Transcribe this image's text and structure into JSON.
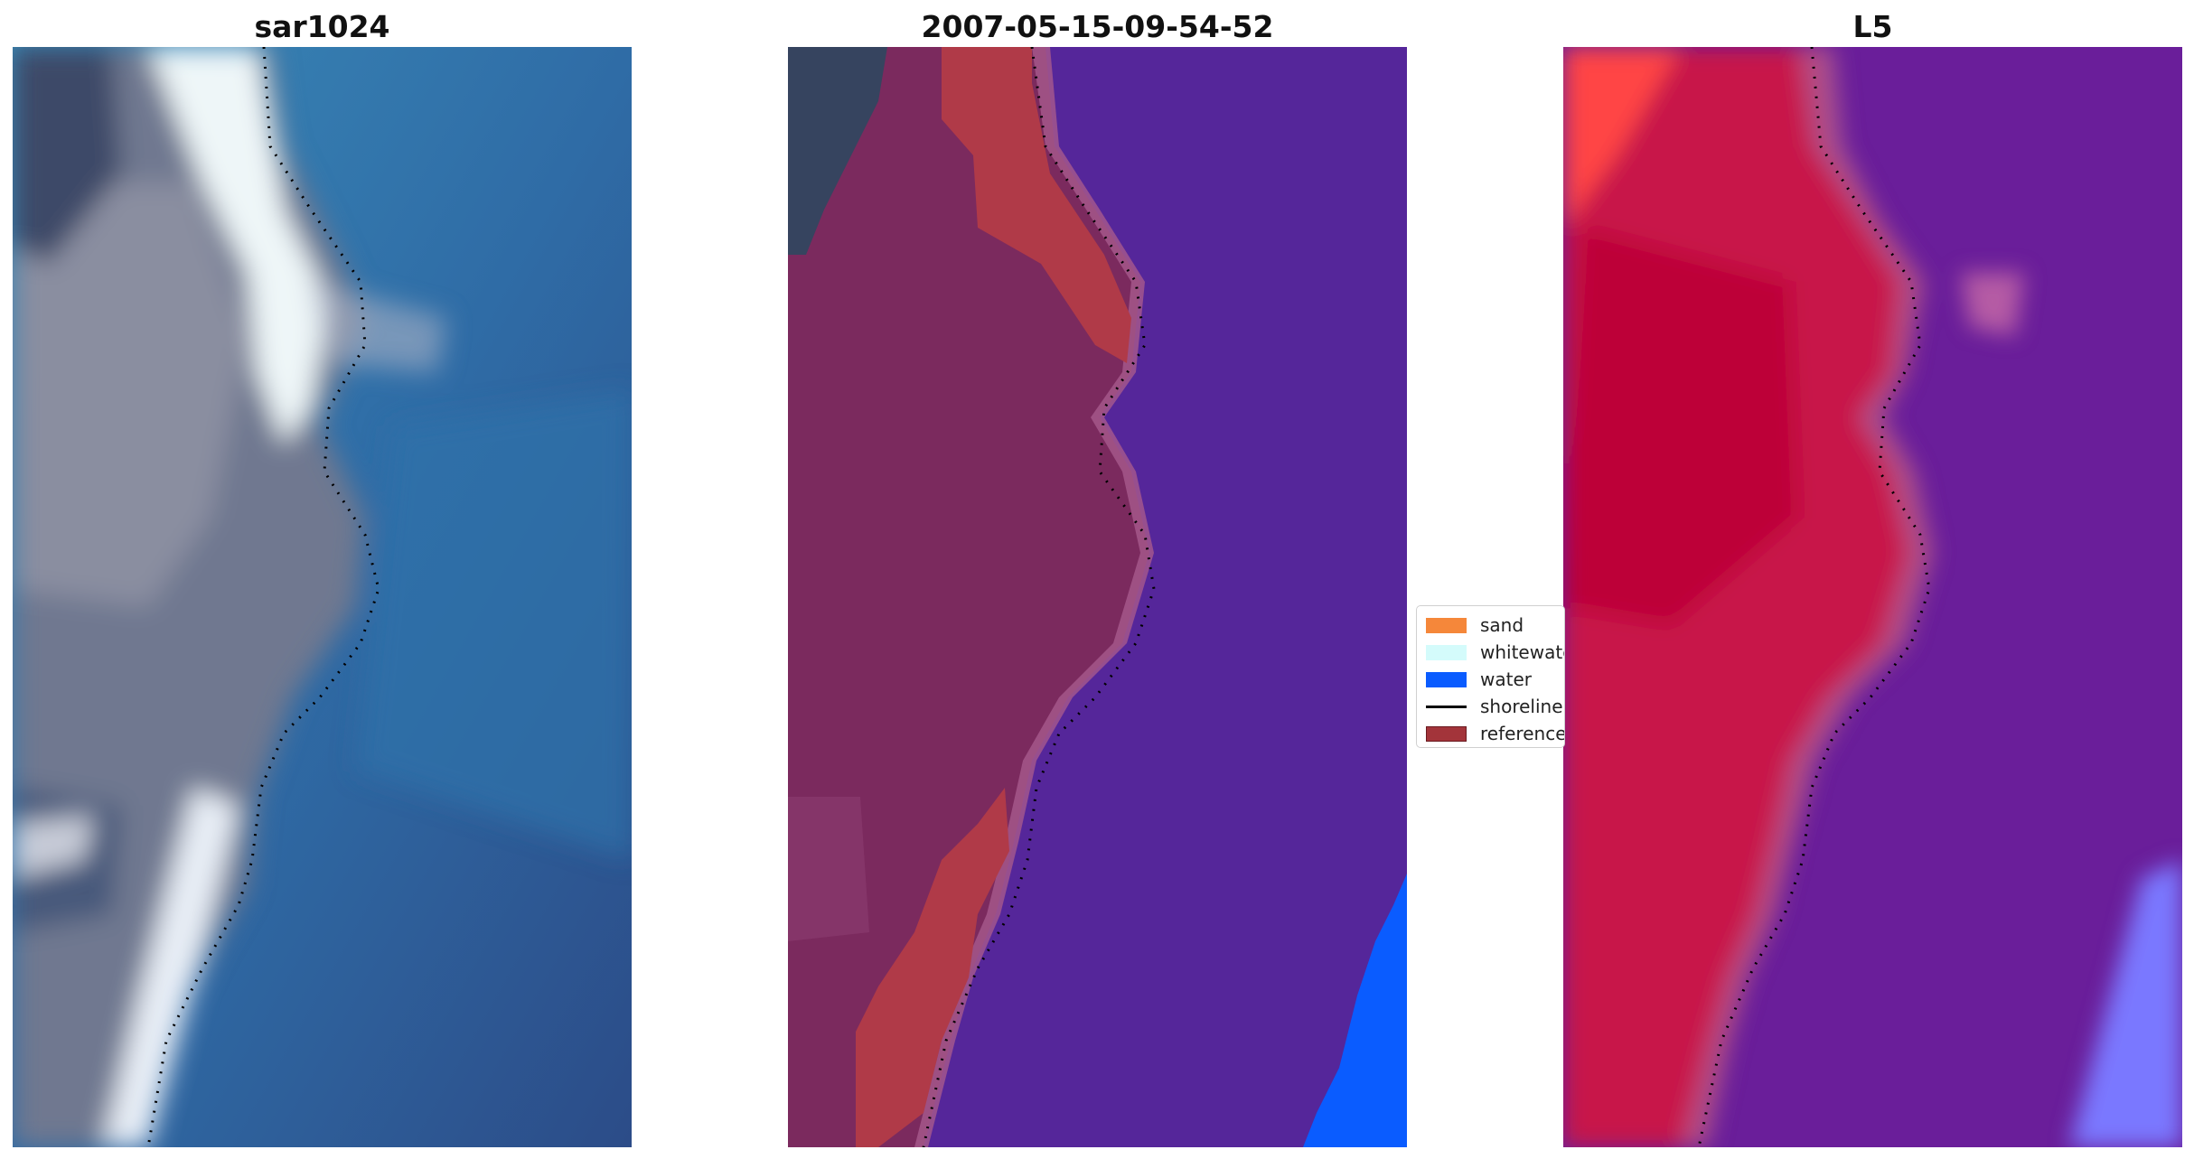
{
  "panels": [
    {
      "title": "sar1024",
      "kind": "rgb-satellite-image"
    },
    {
      "title": "2007-05-15-09-54-52",
      "kind": "classified-image"
    },
    {
      "title": "L5",
      "kind": "water-index-image"
    }
  ],
  "legend": {
    "items": [
      {
        "label": "sand",
        "color": "#f5873a",
        "type": "patch"
      },
      {
        "label": "whitewater",
        "color": "#d4fbfb",
        "type": "patch"
      },
      {
        "label": "water",
        "color": "#0a5cff",
        "type": "patch"
      },
      {
        "label": "shoreline",
        "color": "#000000",
        "type": "line"
      },
      {
        "label": "reference",
        "color": "#a3343a",
        "type": "patch"
      }
    ]
  },
  "colors": {
    "land_rgb": "#6d7a90",
    "whitewater_rgb": "#e8f0f4",
    "sea_rgb": "#2e64a0",
    "class_land": "#7a2a5c",
    "class_sea": "#55269a",
    "class_reference": "#b03a48",
    "index_land": "#c8134a",
    "index_sea": "#6a1e9a"
  }
}
